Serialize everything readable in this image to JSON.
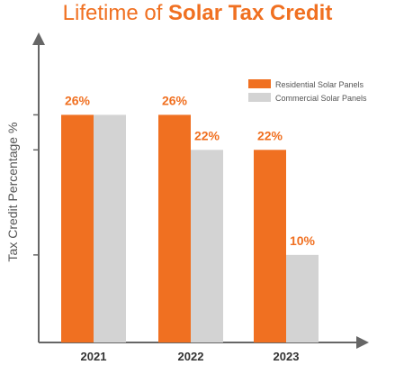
{
  "colors": {
    "accent": "#f07021",
    "commercial": "#d3d3d3",
    "axis": "#666666",
    "tick_text": "#333333"
  },
  "title": {
    "light": "Lifetime of",
    "bold": "Solar Tax Credit"
  },
  "chart_data": {
    "type": "bar",
    "title": "Lifetime of Solar Tax Credit",
    "xlabel": "",
    "ylabel": "Tax Credit Percentage %",
    "ylim": [
      0,
      35
    ],
    "grid": false,
    "legend_position": "top-right",
    "categories": [
      "2021",
      "2022",
      "2023"
    ],
    "series": [
      {
        "name": "Residential Solar Panels",
        "color": "#f07021",
        "values": [
          26,
          26,
          22
        ],
        "labels": [
          "26%",
          "26%",
          "22%"
        ]
      },
      {
        "name": "Commercial Solar Panels",
        "color": "#d3d3d3",
        "values": [
          26,
          22,
          10
        ],
        "labels": [
          "",
          "22%",
          "10%"
        ]
      }
    ]
  }
}
